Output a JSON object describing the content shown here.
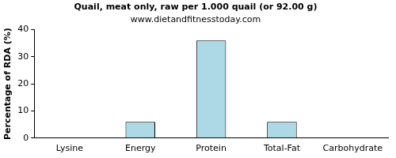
{
  "chart_data": {
    "type": "bar",
    "title": "Quail, meat only, raw per 1.000 quail (or 92.00 g)",
    "subtitle": "www.dietandfitnesstoday.com",
    "y_label": "Percentage of RDA (%)",
    "categories": [
      "Lysine",
      "Energy",
      "Protein",
      "Total-Fat",
      "Carbohydrate"
    ],
    "values": [
      0,
      6,
      36,
      6,
      0
    ],
    "color": "#add8e6",
    "ylim": [
      0,
      40
    ],
    "yticks": [
      0,
      10,
      20,
      30,
      40
    ],
    "grid": false
  }
}
